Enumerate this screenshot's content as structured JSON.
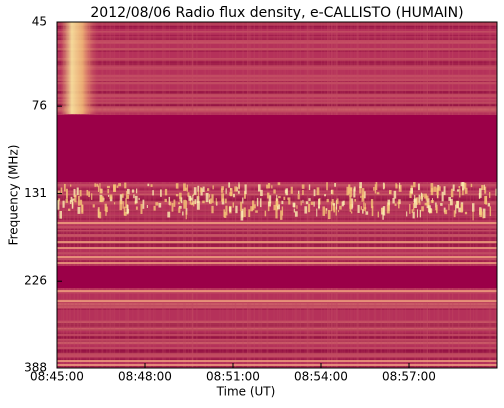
{
  "chart_data": {
    "type": "spectrogram",
    "title": "2012/08/06  Radio flux density, e-CALLISTO (HUMAIN)",
    "x_label": "Time (UT)",
    "y_label": "Frequency (MHz)",
    "xlim": [
      "08:45:00",
      "09:00:00"
    ],
    "xticks": [
      "08:45:00",
      "08:48:00",
      "08:51:00",
      "08:54:00",
      "08:57:00"
    ],
    "ylim": [
      388,
      45
    ],
    "yticks": [
      45,
      76,
      131,
      226,
      388
    ],
    "log_y": true
  }
}
